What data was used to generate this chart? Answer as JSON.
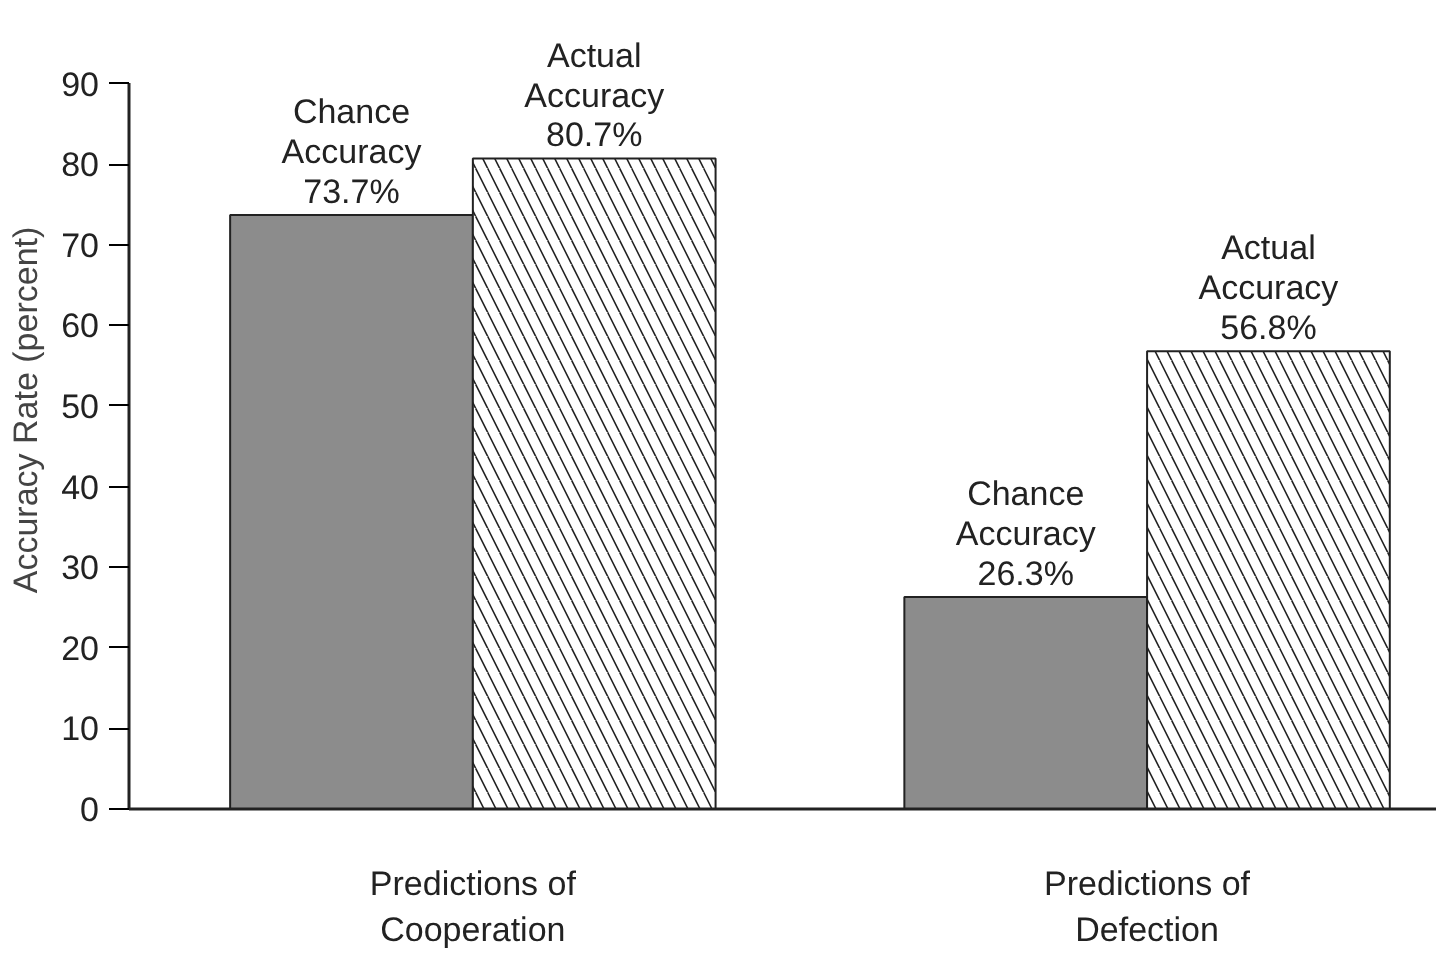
{
  "chart_data": {
    "type": "bar",
    "ylabel": "Accuracy Rate (percent)",
    "categories": [
      "Predictions of Cooperation",
      "Predictions of Defection"
    ],
    "series": [
      {
        "name": "Chance Accuracy",
        "color": "#8c8c8c",
        "values": [
          73.7,
          26.3
        ],
        "value_labels": [
          "73.7%",
          "26.3%"
        ]
      },
      {
        "name": "Actual Accuracy",
        "color": "#ffffff",
        "values": [
          80.7,
          56.8
        ],
        "value_labels": [
          "80.7%",
          "56.8%"
        ]
      }
    ],
    "ylim": [
      0,
      90
    ],
    "yticks": [
      0,
      10,
      20,
      30,
      40,
      50,
      60,
      70,
      80,
      90
    ],
    "grid": false
  }
}
